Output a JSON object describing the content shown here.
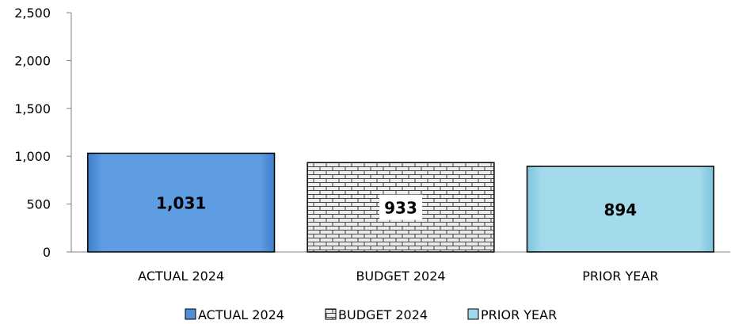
{
  "chart_data": {
    "type": "bar",
    "title": "",
    "xlabel": "",
    "ylabel": "",
    "categories": [
      "ACTUAL 2024",
      "BUDGET 2024",
      "PRIOR YEAR"
    ],
    "values": [
      1031,
      933,
      894
    ],
    "data_labels": [
      "1,031",
      "933",
      "894"
    ],
    "ylim": [
      0,
      2500
    ],
    "yticks": [
      0,
      500,
      1000,
      1500,
      2000,
      2500
    ],
    "ytick_labels": [
      "0",
      "500",
      "1,000",
      "1,500",
      "2,000",
      "2,500"
    ],
    "grid": false,
    "legend": {
      "placement": "bottom",
      "entries": [
        "ACTUAL 2024",
        "BUDGET 2024",
        "PRIOR YEAR"
      ]
    },
    "colors": [
      "#5B9BE0",
      "#E8E8E8",
      "#9ED8EA"
    ],
    "patterns": [
      "solid",
      "brick",
      "solid"
    ]
  }
}
